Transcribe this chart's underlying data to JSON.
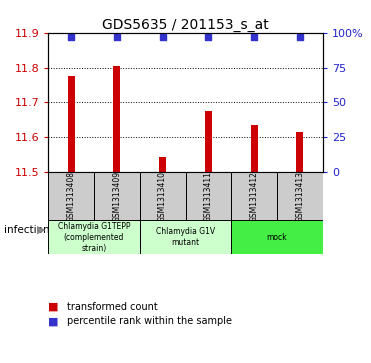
{
  "title": "GDS5635 / 201153_s_at",
  "samples": [
    "GSM1313408",
    "GSM1313409",
    "GSM1313410",
    "GSM1313411",
    "GSM1313412",
    "GSM1313413"
  ],
  "bar_values": [
    11.775,
    11.805,
    11.545,
    11.675,
    11.635,
    11.615
  ],
  "percentile_values": [
    97,
    97,
    97,
    97,
    97,
    97
  ],
  "ylim": [
    11.5,
    11.9
  ],
  "yticks": [
    11.5,
    11.6,
    11.7,
    11.8,
    11.9
  ],
  "right_yticks": [
    0,
    25,
    50,
    75,
    100
  ],
  "right_ylabels": [
    "0",
    "25",
    "50",
    "75",
    "100%"
  ],
  "bar_color": "#cc0000",
  "dot_color": "#3333cc",
  "bar_width": 0.15,
  "group_configs": [
    {
      "indices": [
        0,
        1
      ],
      "label": "Chlamydia G1TEPP\n(complemented\nstrain)",
      "color": "#ccffcc"
    },
    {
      "indices": [
        2,
        3
      ],
      "label": "Chlamydia G1V\nmutant",
      "color": "#ccffcc"
    },
    {
      "indices": [
        4,
        5
      ],
      "label": "mock",
      "color": "#44ee44"
    }
  ],
  "sample_box_color": "#cccccc",
  "infection_label": "infection",
  "legend_bar_label": "transformed count",
  "legend_dot_label": "percentile rank within the sample",
  "left_tick_color": "#cc0000",
  "right_tick_color": "#2222cc",
  "title_fontsize": 10
}
